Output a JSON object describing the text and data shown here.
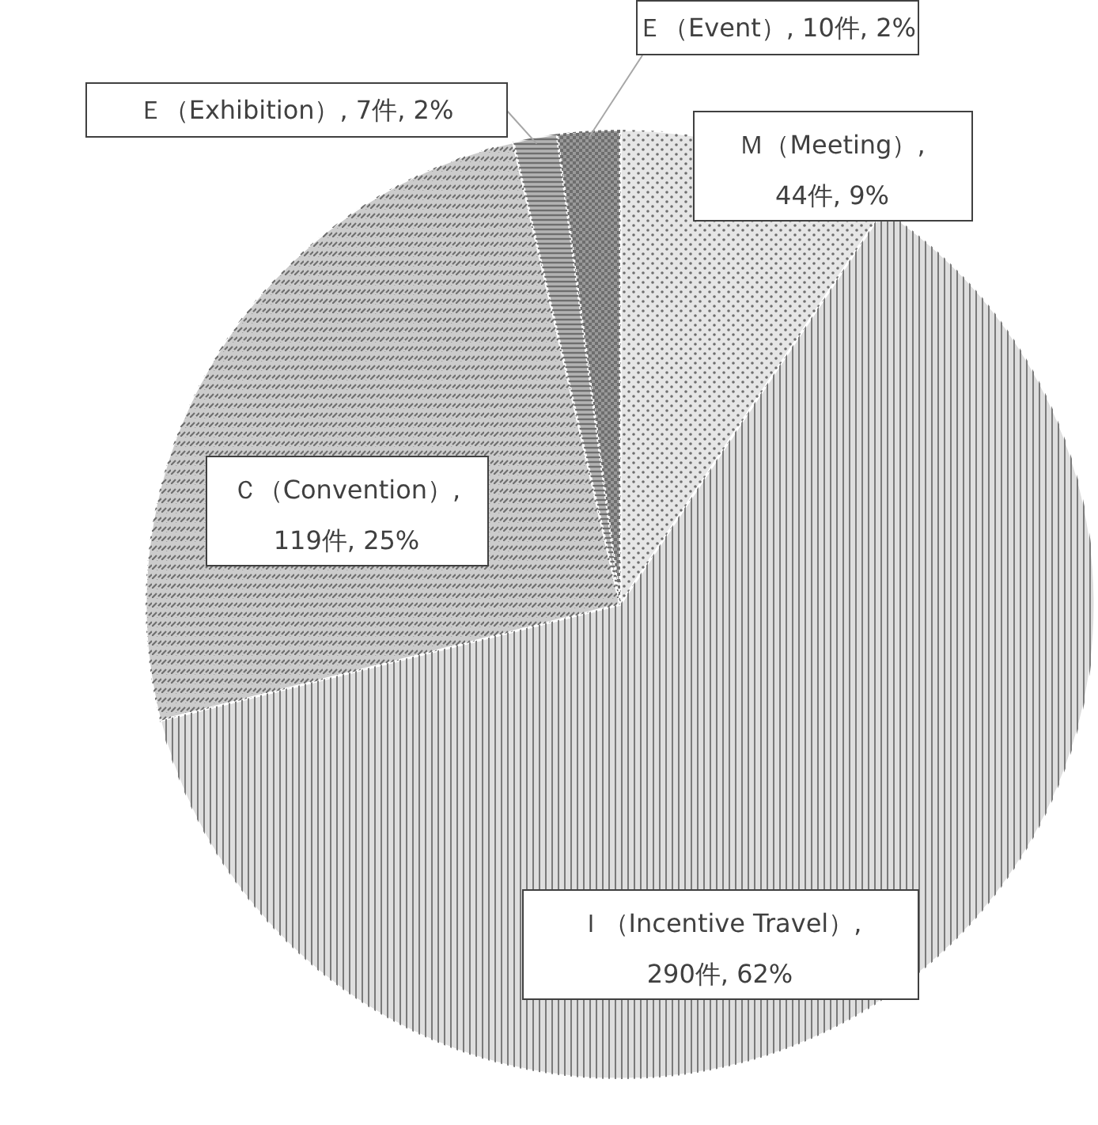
{
  "chart_data": {
    "type": "pie",
    "categories": [
      "Ｍ（Meeting）",
      "Ｉ（Incentive Travel）",
      "Ｃ（Convention）",
      "Ｅ（Exhibition）",
      "Ｅ（Event）"
    ],
    "values": [
      44,
      290,
      119,
      7,
      10
    ],
    "value_labels": [
      ", 44件, 9%",
      ", 290件, 62%",
      ", 119件, 25%",
      ", 7件, 2%",
      ", 10件, 2%"
    ],
    "colors": [
      "#e6e6e6",
      "#dedede",
      "#cccccc",
      "#b3b3b3",
      "#999999"
    ]
  }
}
